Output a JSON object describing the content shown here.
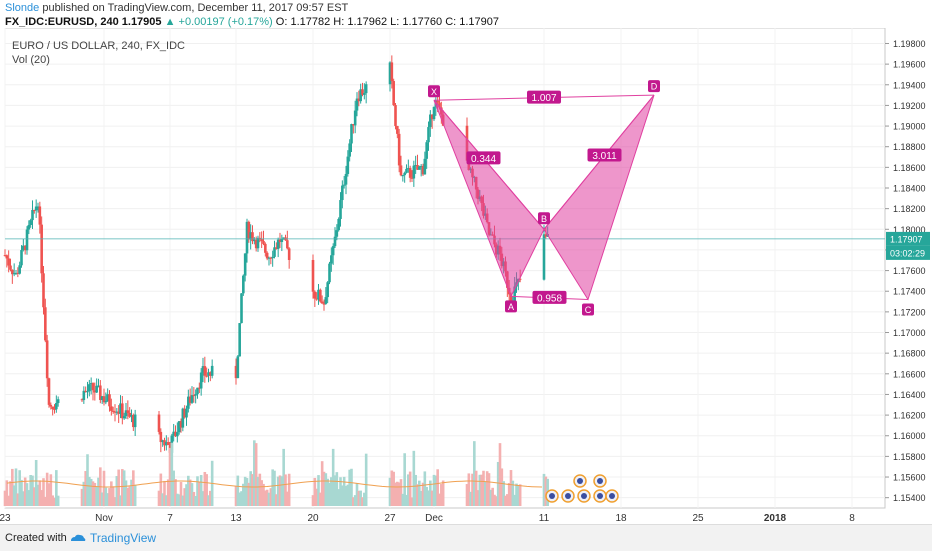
{
  "header": {
    "author": "Slonde",
    "published": "published on TradingView.com, December 11, 2017 09:57 EST",
    "symbol_line": {
      "symbol": "FX_IDC:EURUSD, 240",
      "last": "1.17905",
      "change": "▲ +0.00197 (+0.17%)",
      "ohlc": "O: 1.17782 H: 1.17962 L: 1.17760 C: 1.17907"
    }
  },
  "legend": {
    "title": "EURO / US DOLLAR, 240, FX_IDC",
    "volume": "Vol (20)"
  },
  "price_axis": {
    "ticks": [
      "1.19800",
      "1.19600",
      "1.19400",
      "1.19200",
      "1.19000",
      "1.18800",
      "1.18600",
      "1.18400",
      "1.18200",
      "1.18000",
      "1.17800",
      "1.17600",
      "1.17400",
      "1.17200",
      "1.17000",
      "1.16800",
      "1.16600",
      "1.16400",
      "1.16200",
      "1.16000",
      "1.15800",
      "1.15600",
      "1.15400"
    ],
    "current_price_label": "1.17907",
    "countdown_label": "03:02:29"
  },
  "time_axis": {
    "ticks": [
      "23",
      "Nov",
      "7",
      "13",
      "20",
      "27",
      "Dec",
      "11",
      "18",
      "25",
      "2018",
      "8"
    ]
  },
  "pattern": {
    "points": [
      "X",
      "A",
      "B",
      "C",
      "D"
    ],
    "ratios": [
      "1.007",
      "0.344",
      "3.011",
      "0.958"
    ]
  },
  "colors": {
    "up": "#26a69a",
    "down": "#ef5350",
    "pattern_fill": "#e040a0",
    "pattern_label": "#c2188e",
    "price_line": "#4fb3b3"
  },
  "chart_data": {
    "type": "candlestick",
    "title": "EURO / US DOLLAR, 240, FX_IDC",
    "y_range": [
      1.153,
      1.1995
    ],
    "x_range": [
      "2017-10-23",
      "2018-01-11"
    ],
    "series_keypoints": [
      {
        "date": "2017-10-23",
        "price": 1.1775
      },
      {
        "date": "2017-10-24",
        "price": 1.1755
      },
      {
        "date": "2017-10-26",
        "price": 1.183
      },
      {
        "date": "2017-10-27",
        "price": 1.163
      },
      {
        "date": "2017-10-31",
        "price": 1.1645
      },
      {
        "date": "2017-11-03",
        "price": 1.162
      },
      {
        "date": "2017-11-07",
        "price": 1.159
      },
      {
        "date": "2017-11-09",
        "price": 1.164
      },
      {
        "date": "2017-11-10",
        "price": 1.166
      },
      {
        "date": "2017-11-13",
        "price": 1.166
      },
      {
        "date": "2017-11-14",
        "price": 1.18
      },
      {
        "date": "2017-11-16",
        "price": 1.1775
      },
      {
        "date": "2017-11-17",
        "price": 1.179
      },
      {
        "date": "2017-11-20",
        "price": 1.174
      },
      {
        "date": "2017-11-21",
        "price": 1.173
      },
      {
        "date": "2017-11-22",
        "price": 1.179
      },
      {
        "date": "2017-11-24",
        "price": 1.193
      },
      {
        "date": "2017-11-27",
        "price": 1.1955
      },
      {
        "date": "2017-11-28",
        "price": 1.185
      },
      {
        "date": "2017-11-30",
        "price": 1.186
      },
      {
        "date": "2017-12-01",
        "price": 1.1925
      },
      {
        "date": "2017-12-04",
        "price": 1.186
      },
      {
        "date": "2017-12-05",
        "price": 1.1835
      },
      {
        "date": "2017-12-06",
        "price": 1.1795
      },
      {
        "date": "2017-12-07",
        "price": 1.1775
      },
      {
        "date": "2017-12-08",
        "price": 1.1735
      },
      {
        "date": "2017-12-11",
        "price": 1.17907
      }
    ],
    "pattern_points": [
      {
        "name": "X",
        "date": "2017-12-01",
        "price": 1.1925
      },
      {
        "name": "A",
        "date": "2017-12-08",
        "price": 1.1735
      },
      {
        "name": "B",
        "date": "2017-12-11",
        "price": 1.18
      },
      {
        "name": "C",
        "date": "2017-12-15",
        "price": 1.1732
      },
      {
        "name": "D",
        "date": "2017-12-21",
        "price": 1.193
      }
    ],
    "current_price": 1.17907
  },
  "footer": {
    "created_with": "Created with",
    "brand": "TradingView"
  }
}
